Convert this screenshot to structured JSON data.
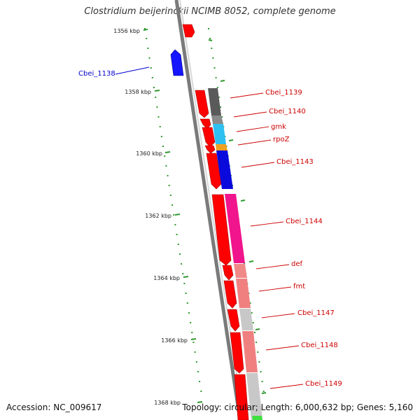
{
  "title": "Clostridium beijerinckii NCIMB 8052, complete genome",
  "accession_text": "Accession: NC_009617",
  "summary_text": "Topology: circular; Length: 6,000,632 bp; Genes: 5,160",
  "colors": {
    "backbone": "#8c8c8c",
    "tick": "#2e9a2e",
    "label_red": "#cc0000",
    "label_blue": "#0000cc"
  },
  "ticks": [
    {
      "label": "1356 kbp"
    },
    {
      "label": "1358 kbp"
    },
    {
      "label": "1360 kbp"
    },
    {
      "label": "1362 kbp"
    },
    {
      "label": "1364 kbp"
    },
    {
      "label": "1366 kbp"
    },
    {
      "label": "1368 kbp"
    }
  ],
  "gene_labels": [
    {
      "name": "Cbei_1138",
      "color": "blue"
    },
    {
      "name": "Cbei_1139",
      "color": "red"
    },
    {
      "name": "Cbei_1140",
      "color": "red"
    },
    {
      "name": "gmk",
      "color": "red"
    },
    {
      "name": "rpoZ",
      "color": "red"
    },
    {
      "name": "Cbei_1143",
      "color": "red"
    },
    {
      "name": "Cbei_1144",
      "color": "red"
    },
    {
      "name": "def",
      "color": "red"
    },
    {
      "name": "fmt",
      "color": "red"
    },
    {
      "name": "Cbei_1147",
      "color": "red"
    },
    {
      "name": "Cbei_1148",
      "color": "red"
    },
    {
      "name": "Cbei_1149",
      "color": "red"
    }
  ]
}
